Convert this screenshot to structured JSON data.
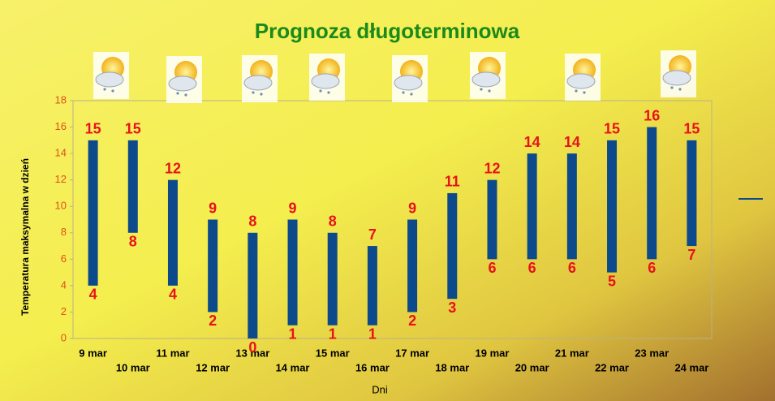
{
  "chart_data": {
    "type": "range-bar",
    "title": "Prognoza długoterminowa",
    "y_axis_label": "Temperatura maksymalna w dzień",
    "x_axis_label": "Dni",
    "categories": [
      "9 mar",
      "10 mar",
      "11 mar",
      "12 mar",
      "13 mar",
      "14 mar",
      "15 mar",
      "16 mar",
      "17 mar",
      "18 mar",
      "19 mar",
      "20 mar",
      "21 mar",
      "22 mar",
      "23 mar",
      "24 mar"
    ],
    "lows": [
      4,
      8,
      4,
      2,
      0,
      1,
      1,
      1,
      2,
      3,
      6,
      6,
      6,
      5,
      6,
      7
    ],
    "highs": [
      15,
      15,
      12,
      9,
      8,
      9,
      8,
      7,
      9,
      11,
      12,
      14,
      14,
      15,
      16,
      15
    ],
    "color": "#0d4a8c",
    "label_color": "#e8121a",
    "ylim": [
      0,
      18
    ],
    "yticks": [
      0,
      2,
      4,
      6,
      8,
      10,
      12,
      14,
      16,
      18
    ],
    "grid": false
  }
}
